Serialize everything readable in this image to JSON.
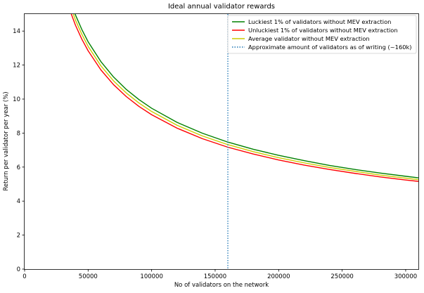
{
  "chart_data": {
    "type": "line",
    "title": "Ideal annual validator rewards",
    "xlabel": "No of validators on the network",
    "ylabel": "Return per validator per year (%)",
    "xlim": [
      0,
      310000
    ],
    "ylim": [
      0,
      15
    ],
    "x_ticks": [
      0,
      50000,
      100000,
      150000,
      200000,
      250000,
      300000
    ],
    "x_tick_labels": [
      "0",
      "50000",
      "100000",
      "150000",
      "200000",
      "250000",
      "300000"
    ],
    "y_ticks": [
      0,
      2,
      4,
      6,
      8,
      10,
      12,
      14
    ],
    "y_tick_labels": [
      "0",
      "2",
      "4",
      "6",
      "8",
      "10",
      "12",
      "14"
    ],
    "legend_position": "top-right",
    "x": [
      35000,
      40000,
      45000,
      50000,
      60000,
      70000,
      80000,
      90000,
      100000,
      120000,
      140000,
      160000,
      180000,
      200000,
      220000,
      240000,
      260000,
      280000,
      300000,
      310000
    ],
    "series": [
      {
        "name": "Luckiest 1% of validators without MEV extraction",
        "color": "#008000",
        "style": "solid",
        "values": [
          16.0,
          14.95,
          14.1,
          13.37,
          12.21,
          11.3,
          10.57,
          9.97,
          9.46,
          8.63,
          7.99,
          7.47,
          7.05,
          6.69,
          6.38,
          6.1,
          5.86,
          5.65,
          5.46,
          5.37
        ]
      },
      {
        "name": "Unluckiest 1% of validators without MEV extraction",
        "color": "#ff0000",
        "style": "solid",
        "values": [
          15.35,
          14.35,
          13.53,
          12.84,
          11.72,
          10.85,
          10.15,
          9.57,
          9.08,
          8.29,
          7.67,
          7.17,
          6.77,
          6.42,
          6.12,
          5.86,
          5.63,
          5.42,
          5.24,
          5.16
        ]
      },
      {
        "name": "Average validator without MEV extraction",
        "color": "#cccc00",
        "style": "solid",
        "values": [
          15.7,
          14.65,
          13.82,
          13.1,
          11.96,
          11.07,
          10.36,
          9.77,
          9.27,
          8.46,
          7.83,
          7.32,
          6.91,
          6.55,
          6.25,
          5.98,
          5.75,
          5.53,
          5.35,
          5.26
        ]
      },
      {
        "name": "Approximate amount of validators as of writing (~160k)",
        "color": "#1f77b4",
        "style": "dotted",
        "type": "vline",
        "x_value": 160000
      }
    ]
  }
}
